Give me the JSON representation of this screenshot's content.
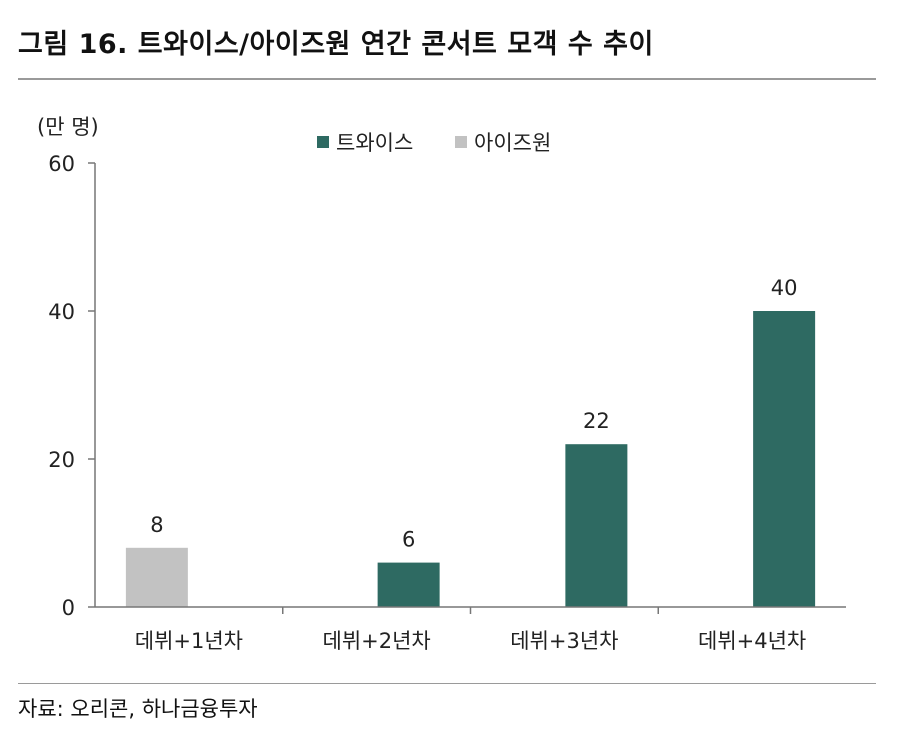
{
  "figure": {
    "title": "그림 16. 트와이스/아이즈원 연간 콘서트 모객 수 추이",
    "source": "자료: 오리콘, 하나금융투자"
  },
  "colors": {
    "twice": "#2e6a62",
    "izone": "#c2c2c2"
  },
  "chart_data": {
    "type": "bar",
    "unit_label": "(만 명)",
    "categories": [
      "데뷔+1년차",
      "데뷔+2년차",
      "데뷔+3년차",
      "데뷔+4년차"
    ],
    "series": [
      {
        "name": "트와이스",
        "values": [
          null,
          6,
          22,
          40
        ]
      },
      {
        "name": "아이즈원",
        "values": [
          8,
          null,
          null,
          null
        ]
      }
    ],
    "ylim": [
      0,
      60
    ],
    "yticks": [
      0,
      20,
      40,
      60
    ],
    "data_labels": true,
    "grid": false,
    "legend": "top-center"
  }
}
